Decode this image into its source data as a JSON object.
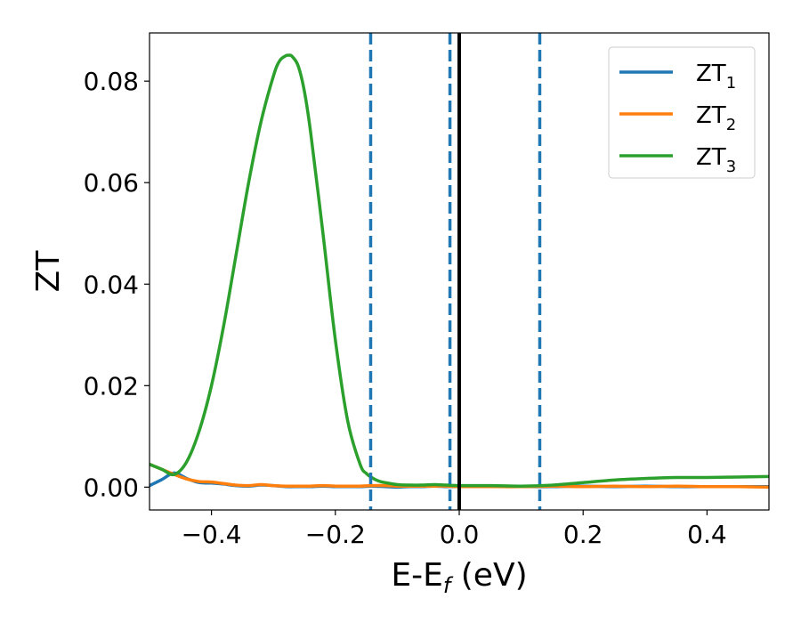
{
  "chart_data": {
    "type": "line",
    "xlabel_main": "E-E",
    "xlabel_sub": "f",
    "xlabel_unit": " (eV)",
    "ylabel": "ZT",
    "xlim": [
      -0.5,
      0.5
    ],
    "ylim": [
      -0.0045,
      0.0895
    ],
    "xticks": [
      -0.4,
      -0.2,
      0.0,
      0.2,
      0.4
    ],
    "xtick_labels": [
      "−0.4",
      "−0.2",
      "0.0",
      "0.2",
      "0.4"
    ],
    "yticks": [
      0.0,
      0.02,
      0.04,
      0.06,
      0.08
    ],
    "ytick_labels": [
      "0.00",
      "0.02",
      "0.04",
      "0.06",
      "0.08"
    ],
    "grid": false,
    "legend_position": "top-right",
    "vlines": [
      {
        "x": -0.143,
        "style": "dashed",
        "color": "#1f77b4"
      },
      {
        "x": -0.015,
        "style": "dashed",
        "color": "#1f77b4"
      },
      {
        "x": 0.0,
        "style": "solid",
        "color": "#000000"
      },
      {
        "x": 0.13,
        "style": "dashed",
        "color": "#1f77b4"
      }
    ],
    "series": [
      {
        "name": "ZT",
        "name_sub": "1",
        "color": "#1f77b4",
        "x": [
          -0.5,
          -0.48,
          -0.46,
          -0.44,
          -0.42,
          -0.4,
          -0.38,
          -0.36,
          -0.34,
          -0.32,
          -0.3,
          -0.28,
          -0.26,
          -0.24,
          -0.22,
          -0.2,
          -0.18,
          -0.16,
          -0.14,
          -0.12,
          -0.1,
          -0.08,
          -0.06,
          -0.04,
          -0.02,
          0.0,
          0.05,
          0.1,
          0.15,
          0.2,
          0.25,
          0.3,
          0.35,
          0.4,
          0.45,
          0.5
        ],
        "y": [
          0.0003,
          0.0015,
          0.0028,
          0.0017,
          0.0009,
          0.0008,
          0.0006,
          0.0003,
          0.0002,
          0.0004,
          0.0003,
          0.0001,
          0.0001,
          0.0001,
          0.0002,
          0.0001,
          0.0001,
          0.0001,
          0.0002,
          0.0001,
          0.0,
          0.0001,
          0.0001,
          0.0002,
          0.0001,
          0.0001,
          0.0001,
          0.0001,
          0.0001,
          0.0002,
          0.0001,
          0.0002,
          0.0001,
          0.0001,
          0.0001,
          0.0001
        ]
      },
      {
        "name": "ZT",
        "name_sub": "2",
        "color": "#ff7f0e",
        "x": [
          -0.5,
          -0.48,
          -0.46,
          -0.44,
          -0.42,
          -0.4,
          -0.38,
          -0.36,
          -0.34,
          -0.32,
          -0.3,
          -0.28,
          -0.26,
          -0.24,
          -0.22,
          -0.2,
          -0.18,
          -0.16,
          -0.14,
          -0.12,
          -0.1,
          -0.08,
          -0.06,
          -0.04,
          -0.02,
          0.0,
          0.05,
          0.1,
          0.15,
          0.2,
          0.25,
          0.3,
          0.35,
          0.4,
          0.45,
          0.5
        ],
        "y": [
          0.0045,
          0.0035,
          0.0025,
          0.0016,
          0.0011,
          0.001,
          0.0007,
          0.0004,
          0.0003,
          0.0005,
          0.0003,
          0.0002,
          0.0002,
          0.0002,
          0.0003,
          0.0002,
          0.0002,
          0.0002,
          0.0003,
          0.0003,
          0.0002,
          0.0002,
          0.0002,
          0.0002,
          0.0002,
          0.0001,
          0.0001,
          0.0001,
          0.0002,
          0.0001,
          0.0002,
          0.0001,
          0.0002,
          0.0001,
          0.0001,
          0.0
        ]
      },
      {
        "name": "ZT",
        "name_sub": "3",
        "color": "#2ca02c",
        "x": [
          -0.5,
          -0.48,
          -0.46,
          -0.44,
          -0.42,
          -0.4,
          -0.38,
          -0.36,
          -0.34,
          -0.32,
          -0.3,
          -0.29,
          -0.28,
          -0.275,
          -0.27,
          -0.26,
          -0.25,
          -0.24,
          -0.22,
          -0.2,
          -0.18,
          -0.16,
          -0.15,
          -0.14,
          -0.13,
          -0.12,
          -0.1,
          -0.08,
          -0.06,
          -0.04,
          -0.02,
          0.0,
          0.05,
          0.1,
          0.15,
          0.2,
          0.25,
          0.3,
          0.35,
          0.4,
          0.45,
          0.5
        ],
        "y": [
          0.0045,
          0.0035,
          0.0025,
          0.005,
          0.011,
          0.02,
          0.032,
          0.046,
          0.06,
          0.072,
          0.081,
          0.084,
          0.085,
          0.0851,
          0.0849,
          0.083,
          0.078,
          0.07,
          0.05,
          0.029,
          0.013,
          0.0045,
          0.0027,
          0.0018,
          0.0012,
          0.0009,
          0.0005,
          0.0004,
          0.0004,
          0.0005,
          0.0004,
          0.0003,
          0.0003,
          0.0002,
          0.0004,
          0.0009,
          0.0014,
          0.0017,
          0.0019,
          0.0019,
          0.002,
          0.0021
        ]
      }
    ]
  }
}
